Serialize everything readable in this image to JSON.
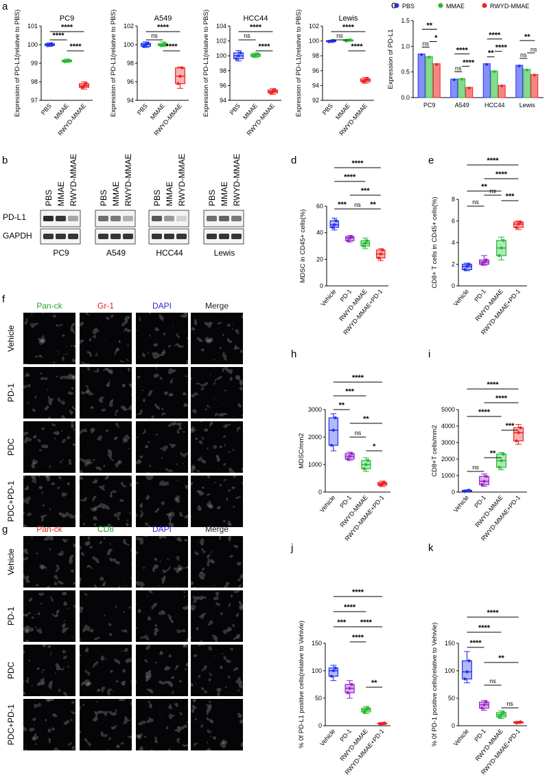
{
  "panel_letters": {
    "a": "a",
    "b": "b",
    "c": "c",
    "d": "d",
    "e": "e",
    "f": "f",
    "g": "g",
    "h": "h",
    "i": "i",
    "j": "j",
    "k": "k"
  },
  "panel_a": {
    "ylabel": "Expression of PD-L1(relative to PBS)",
    "categories": [
      "PBS",
      "MMAE",
      "RWYD-MMAE"
    ],
    "plots": [
      {
        "title": "PC9",
        "ylim": [
          97,
          101
        ],
        "ticks": [
          97,
          98,
          99,
          100,
          101
        ],
        "boxes": [
          {
            "q1": 99.95,
            "med": 100,
            "q3": 100.05,
            "min": 99.9,
            "max": 100.1
          },
          {
            "q1": 99.08,
            "med": 99.12,
            "q3": 99.17,
            "min": 99.05,
            "max": 99.22
          },
          {
            "q1": 97.7,
            "med": 97.78,
            "q3": 97.9,
            "min": 97.6,
            "max": 98.0
          }
        ],
        "sig": [
          {
            "a": 0,
            "b": 1,
            "t": "****"
          },
          {
            "a": 1,
            "b": 2,
            "t": "****"
          },
          {
            "a": 0,
            "b": 2,
            "t": "****"
          }
        ]
      },
      {
        "title": "A549",
        "ylim": [
          94,
          102
        ],
        "ticks": [
          94,
          96,
          98,
          100,
          102
        ],
        "boxes": [
          {
            "q1": 99.8,
            "med": 100,
            "q3": 100.15,
            "min": 99.7,
            "max": 100.3
          },
          {
            "q1": 99.9,
            "med": 100,
            "q3": 100.1,
            "min": 99.8,
            "max": 100.3
          },
          {
            "q1": 95.8,
            "med": 96.6,
            "q3": 97.5,
            "min": 95.3,
            "max": 97.6
          }
        ],
        "sig": [
          {
            "a": 0,
            "b": 1,
            "t": "ns"
          },
          {
            "a": 1,
            "b": 2,
            "t": "****"
          },
          {
            "a": 0,
            "b": 2,
            "t": "****"
          }
        ]
      },
      {
        "title": "HCC44",
        "ylim": [
          94,
          104
        ],
        "ticks": [
          94,
          96,
          98,
          100,
          102,
          104
        ],
        "boxes": [
          {
            "q1": 99.6,
            "med": 100,
            "q3": 100.4,
            "min": 99.3,
            "max": 100.7
          },
          {
            "q1": 99.9,
            "med": 100.1,
            "q3": 100.25,
            "min": 99.8,
            "max": 100.4
          },
          {
            "q1": 95.0,
            "med": 95.2,
            "q3": 95.4,
            "min": 94.8,
            "max": 95.6
          }
        ],
        "sig": [
          {
            "a": 0,
            "b": 1,
            "t": "ns"
          },
          {
            "a": 1,
            "b": 2,
            "t": "****"
          },
          {
            "a": 0,
            "b": 2,
            "t": "****"
          }
        ]
      },
      {
        "title": "Lewis",
        "ylim": [
          92,
          102
        ],
        "ticks": [
          92,
          94,
          96,
          98,
          100,
          102
        ],
        "boxes": [
          {
            "q1": 99.9,
            "med": 100,
            "q3": 100.05,
            "min": 99.8,
            "max": 100.1
          },
          {
            "q1": 100.0,
            "med": 100.1,
            "q3": 100.15,
            "min": 99.95,
            "max": 100.2
          },
          {
            "q1": 94.5,
            "med": 94.7,
            "q3": 94.9,
            "min": 94.3,
            "max": 95.1
          }
        ],
        "sig": [
          {
            "a": 0,
            "b": 1,
            "t": "ns"
          },
          {
            "a": 1,
            "b": 2,
            "t": "****"
          },
          {
            "a": 0,
            "b": 2,
            "t": "****"
          }
        ]
      }
    ]
  },
  "panel_c": {
    "ylabel": "Expression of PD-L1",
    "ylim": [
      0,
      1.5
    ],
    "ticks": [
      "0.0",
      "0.5",
      "1.0",
      "1.5"
    ],
    "legend": [
      "PBS",
      "MMAE",
      "RWYD-MMAE"
    ],
    "categories": [
      "PC9",
      "A549",
      "HCC44",
      "Lewis"
    ],
    "values": [
      [
        0.85,
        0.8,
        0.66
      ],
      [
        0.36,
        0.37,
        0.2
      ],
      [
        0.66,
        0.52,
        0.24
      ],
      [
        0.63,
        0.55,
        0.45
      ]
    ],
    "sig": [
      [
        "**",
        "ns",
        "*"
      ],
      [
        "****",
        "ns",
        "****"
      ],
      [
        "****",
        "**",
        "****"
      ],
      [
        "**",
        "ns",
        "ns"
      ]
    ]
  },
  "panel_b": {
    "rows": [
      "PD-L1",
      "GAPDH"
    ],
    "lanes": [
      "PBS",
      "MMAE",
      "RWYD-MMAE"
    ],
    "groups": [
      "PC9",
      "A549",
      "HCC44",
      "Lewis"
    ],
    "intensity": [
      [
        0.9,
        0.85,
        0.35
      ],
      [
        0.6,
        0.55,
        0.3
      ],
      [
        0.7,
        0.4,
        0.15
      ],
      [
        0.6,
        0.65,
        0.55
      ]
    ]
  },
  "groups4": [
    "Vehicle",
    "PD-1",
    "RWYD-MMAE",
    "RWYD-MMAE+PD-1"
  ],
  "panel_d": {
    "ylabel": "MDSC in CD45+ cells(%)",
    "ylim": [
      0,
      60
    ],
    "ticks": [
      0,
      20,
      40,
      60
    ],
    "boxes": [
      {
        "q1": 44,
        "med": 46,
        "q3": 49,
        "min": 42,
        "max": 51
      },
      {
        "q1": 34,
        "med": 36,
        "q3": 37,
        "min": 33,
        "max": 38
      },
      {
        "q1": 30,
        "med": 32,
        "q3": 34,
        "min": 28,
        "max": 36
      },
      {
        "q1": 21,
        "med": 24,
        "q3": 27,
        "min": 19,
        "max": 28
      }
    ],
    "sig": [
      {
        "a": 0,
        "b": 1,
        "t": "***"
      },
      {
        "a": 1,
        "b": 2,
        "t": "ns"
      },
      {
        "a": 2,
        "b": 3,
        "t": "**"
      },
      {
        "a": 0,
        "b": 2,
        "t": "****"
      },
      {
        "a": 1,
        "b": 3,
        "t": "***"
      },
      {
        "a": 0,
        "b": 3,
        "t": "****"
      }
    ]
  },
  "panel_e": {
    "ylabel": "CD8+ T cells in CD45+ cells(%)",
    "ylim": [
      0,
      8
    ],
    "ticks": [
      0,
      2,
      4,
      6,
      8
    ],
    "boxes": [
      {
        "q1": 1.5,
        "med": 1.8,
        "q3": 2.0,
        "min": 1.4,
        "max": 2.1
      },
      {
        "q1": 2.0,
        "med": 2.2,
        "q3": 2.4,
        "min": 1.9,
        "max": 2.8
      },
      {
        "q1": 2.8,
        "med": 3.5,
        "q3": 4.2,
        "min": 2.4,
        "max": 4.5
      },
      {
        "q1": 5.4,
        "med": 5.7,
        "q3": 5.9,
        "min": 5.2,
        "max": 6.0
      }
    ],
    "sig": [
      {
        "a": 0,
        "b": 1,
        "t": "ns"
      },
      {
        "a": 1,
        "b": 2,
        "t": "ns"
      },
      {
        "a": 2,
        "b": 3,
        "t": "***"
      },
      {
        "a": 0,
        "b": 2,
        "t": "**"
      },
      {
        "a": 1,
        "b": 3,
        "t": "****"
      },
      {
        "a": 0,
        "b": 3,
        "t": "****"
      }
    ]
  },
  "panel_h": {
    "ylabel": "MDSC/mm2",
    "ylim": [
      0,
      3000
    ],
    "ticks": [
      0,
      1000,
      2000,
      3000
    ],
    "boxes": [
      {
        "q1": 1700,
        "med": 2250,
        "q3": 2700,
        "min": 1500,
        "max": 2850
      },
      {
        "q1": 1200,
        "med": 1300,
        "q3": 1400,
        "min": 1150,
        "max": 1450
      },
      {
        "q1": 850,
        "med": 1000,
        "q3": 1150,
        "min": 750,
        "max": 1250
      },
      {
        "q1": 250,
        "med": 300,
        "q3": 350,
        "min": 200,
        "max": 400
      }
    ],
    "sig": [
      {
        "a": 0,
        "b": 1,
        "t": "**"
      },
      {
        "a": 1,
        "b": 2,
        "t": "ns"
      },
      {
        "a": 2,
        "b": 3,
        "t": "*"
      },
      {
        "a": 1,
        "b": 3,
        "t": "**"
      },
      {
        "a": 0,
        "b": 2,
        "t": "***"
      },
      {
        "a": 0,
        "b": 3,
        "t": "****"
      }
    ]
  },
  "panel_i": {
    "ylabel": "CD8+T cells/mm2",
    "ylim": [
      0,
      5000
    ],
    "ticks": [
      0,
      1000,
      2000,
      3000,
      4000,
      5000
    ],
    "boxes": [
      {
        "q1": 40,
        "med": 80,
        "q3": 110,
        "min": 20,
        "max": 130
      },
      {
        "q1": 450,
        "med": 650,
        "q3": 950,
        "min": 350,
        "max": 1100
      },
      {
        "q1": 1500,
        "med": 1900,
        "q3": 2300,
        "min": 1350,
        "max": 2400
      },
      {
        "q1": 3100,
        "med": 3600,
        "q3": 3900,
        "min": 2900,
        "max": 4100
      }
    ],
    "sig": [
      {
        "a": 0,
        "b": 1,
        "t": "ns"
      },
      {
        "a": 1,
        "b": 2,
        "t": "**"
      },
      {
        "a": 2,
        "b": 3,
        "t": "***"
      },
      {
        "a": 0,
        "b": 2,
        "t": "****"
      },
      {
        "a": 1,
        "b": 3,
        "t": "****"
      },
      {
        "a": 0,
        "b": 3,
        "t": "****"
      }
    ]
  },
  "panel_j": {
    "ylabel": "% 0f PD-L1 positive cells(relative to Vehivle)",
    "ylim": [
      0,
      150
    ],
    "ticks": [
      0,
      50,
      100,
      150
    ],
    "boxes": [
      {
        "q1": 90,
        "med": 100,
        "q3": 105,
        "min": 82,
        "max": 110
      },
      {
        "q1": 60,
        "med": 68,
        "q3": 75,
        "min": 50,
        "max": 82
      },
      {
        "q1": 25,
        "med": 29,
        "q3": 32,
        "min": 22,
        "max": 35
      },
      {
        "q1": 3,
        "med": 4,
        "q3": 5,
        "min": 2,
        "max": 6
      }
    ],
    "sig": [
      {
        "a": 0,
        "b": 1,
        "t": "***"
      },
      {
        "a": 1,
        "b": 2,
        "t": "****"
      },
      {
        "a": 2,
        "b": 3,
        "t": "**"
      },
      {
        "a": 1,
        "b": 3,
        "t": "****"
      },
      {
        "a": 0,
        "b": 2,
        "t": "****"
      },
      {
        "a": 0,
        "b": 3,
        "t": "****"
      }
    ]
  },
  "panel_k": {
    "ylabel": "% 0f PD-1 positive cells(relative to Vehivle)",
    "ylim": [
      0,
      150
    ],
    "ticks": [
      0,
      50,
      100,
      150
    ],
    "boxes": [
      {
        "q1": 85,
        "med": 98,
        "q3": 118,
        "min": 78,
        "max": 135
      },
      {
        "q1": 32,
        "med": 38,
        "q3": 43,
        "min": 28,
        "max": 46
      },
      {
        "q1": 16,
        "med": 20,
        "q3": 24,
        "min": 13,
        "max": 27
      },
      {
        "q1": 5,
        "med": 6,
        "q3": 7,
        "min": 4,
        "max": 8
      }
    ],
    "sig": [
      {
        "a": 0,
        "b": 1,
        "t": "****"
      },
      {
        "a": 1,
        "b": 2,
        "t": "ns"
      },
      {
        "a": 2,
        "b": 3,
        "t": "ns"
      },
      {
        "a": 1,
        "b": 3,
        "t": "**"
      },
      {
        "a": 0,
        "b": 2,
        "t": "****"
      },
      {
        "a": 0,
        "b": 3,
        "t": "****"
      }
    ]
  },
  "panel_f": {
    "channels": [
      "Pan-ck",
      "Gr-1",
      "DAPI",
      "Merge"
    ],
    "rows": [
      "Vehicle",
      "PD-1",
      "PDC",
      "PDC+PD-1"
    ],
    "channel_colors": [
      "#22a52c",
      "#e02020",
      "#2a2ad0",
      "#222222"
    ]
  },
  "panel_g": {
    "channels": [
      "Pan-ck",
      "CD8",
      "DAPI",
      "Merge"
    ],
    "rows": [
      "Vehicle",
      "PD-1",
      "PDC",
      "PDC+PD-1"
    ],
    "channel_colors": [
      "#e02020",
      "#22a52c",
      "#2a2ad0",
      "#222222"
    ]
  },
  "colors": {
    "blue": "#2233ee",
    "green": "#22bb33",
    "red": "#ee2222",
    "purple": "#9a22cc"
  },
  "chart_data": [
    {
      "type": "box",
      "title": "PC9",
      "categories": [
        "PBS",
        "MMAE",
        "RWYD-MMAE"
      ],
      "median": [
        100,
        99.12,
        97.78
      ]
    },
    {
      "type": "box",
      "title": "A549",
      "categories": [
        "PBS",
        "MMAE",
        "RWYD-MMAE"
      ],
      "median": [
        100,
        100,
        96.6
      ]
    },
    {
      "type": "box",
      "title": "HCC44",
      "categories": [
        "PBS",
        "MMAE",
        "RWYD-MMAE"
      ],
      "median": [
        100,
        100.1,
        95.2
      ]
    },
    {
      "type": "box",
      "title": "Lewis",
      "categories": [
        "PBS",
        "MMAE",
        "RWYD-MMAE"
      ],
      "median": [
        100,
        100.1,
        94.7
      ]
    },
    {
      "type": "bar",
      "categories": [
        "PC9",
        "A549",
        "HCC44",
        "Lewis"
      ],
      "series": [
        {
          "name": "PBS",
          "values": [
            0.85,
            0.36,
            0.66,
            0.63
          ]
        },
        {
          "name": "MMAE",
          "values": [
            0.8,
            0.37,
            0.52,
            0.55
          ]
        },
        {
          "name": "RWYD-MMAE",
          "values": [
            0.66,
            0.2,
            0.24,
            0.45
          ]
        }
      ],
      "ylabel": "Expression of PD-L1",
      "ylim": [
        0,
        1.5
      ]
    },
    {
      "type": "box",
      "ylabel": "MDSC in CD45+ cells(%)",
      "categories": [
        "Vehicle",
        "PD-1",
        "RWYD-MMAE",
        "RWYD-MMAE+PD-1"
      ],
      "median": [
        46,
        36,
        32,
        24
      ]
    },
    {
      "type": "box",
      "ylabel": "CD8+ T cells in CD45+ cells(%)",
      "categories": [
        "Vehicle",
        "PD-1",
        "RWYD-MMAE",
        "RWYD-MMAE+PD-1"
      ],
      "median": [
        1.8,
        2.2,
        3.5,
        5.7
      ]
    },
    {
      "type": "box",
      "ylabel": "MDSC/mm2",
      "categories": [
        "Vehicle",
        "PD-1",
        "RWYD-MMAE",
        "RWYD-MMAE+PD-1"
      ],
      "median": [
        2250,
        1300,
        1000,
        300
      ]
    },
    {
      "type": "box",
      "ylabel": "CD8+T cells/mm2",
      "categories": [
        "Vehicle",
        "PD-1",
        "RWYD-MMAE",
        "RWYD-MMAE+PD-1"
      ],
      "median": [
        80,
        650,
        1900,
        3600
      ]
    },
    {
      "type": "box",
      "ylabel": "% 0f PD-L1 positive cells(relative to Vehivle)",
      "categories": [
        "Vehicle",
        "PD-1",
        "RWYD-MMAE",
        "RWYD-MMAE+PD-1"
      ],
      "median": [
        100,
        68,
        29,
        4
      ]
    },
    {
      "type": "box",
      "ylabel": "% 0f PD-1 positive cells(relative to Vehivle)",
      "categories": [
        "Vehicle",
        "PD-1",
        "RWYD-MMAE",
        "RWYD-MMAE+PD-1"
      ],
      "median": [
        98,
        38,
        20,
        6
      ]
    }
  ]
}
